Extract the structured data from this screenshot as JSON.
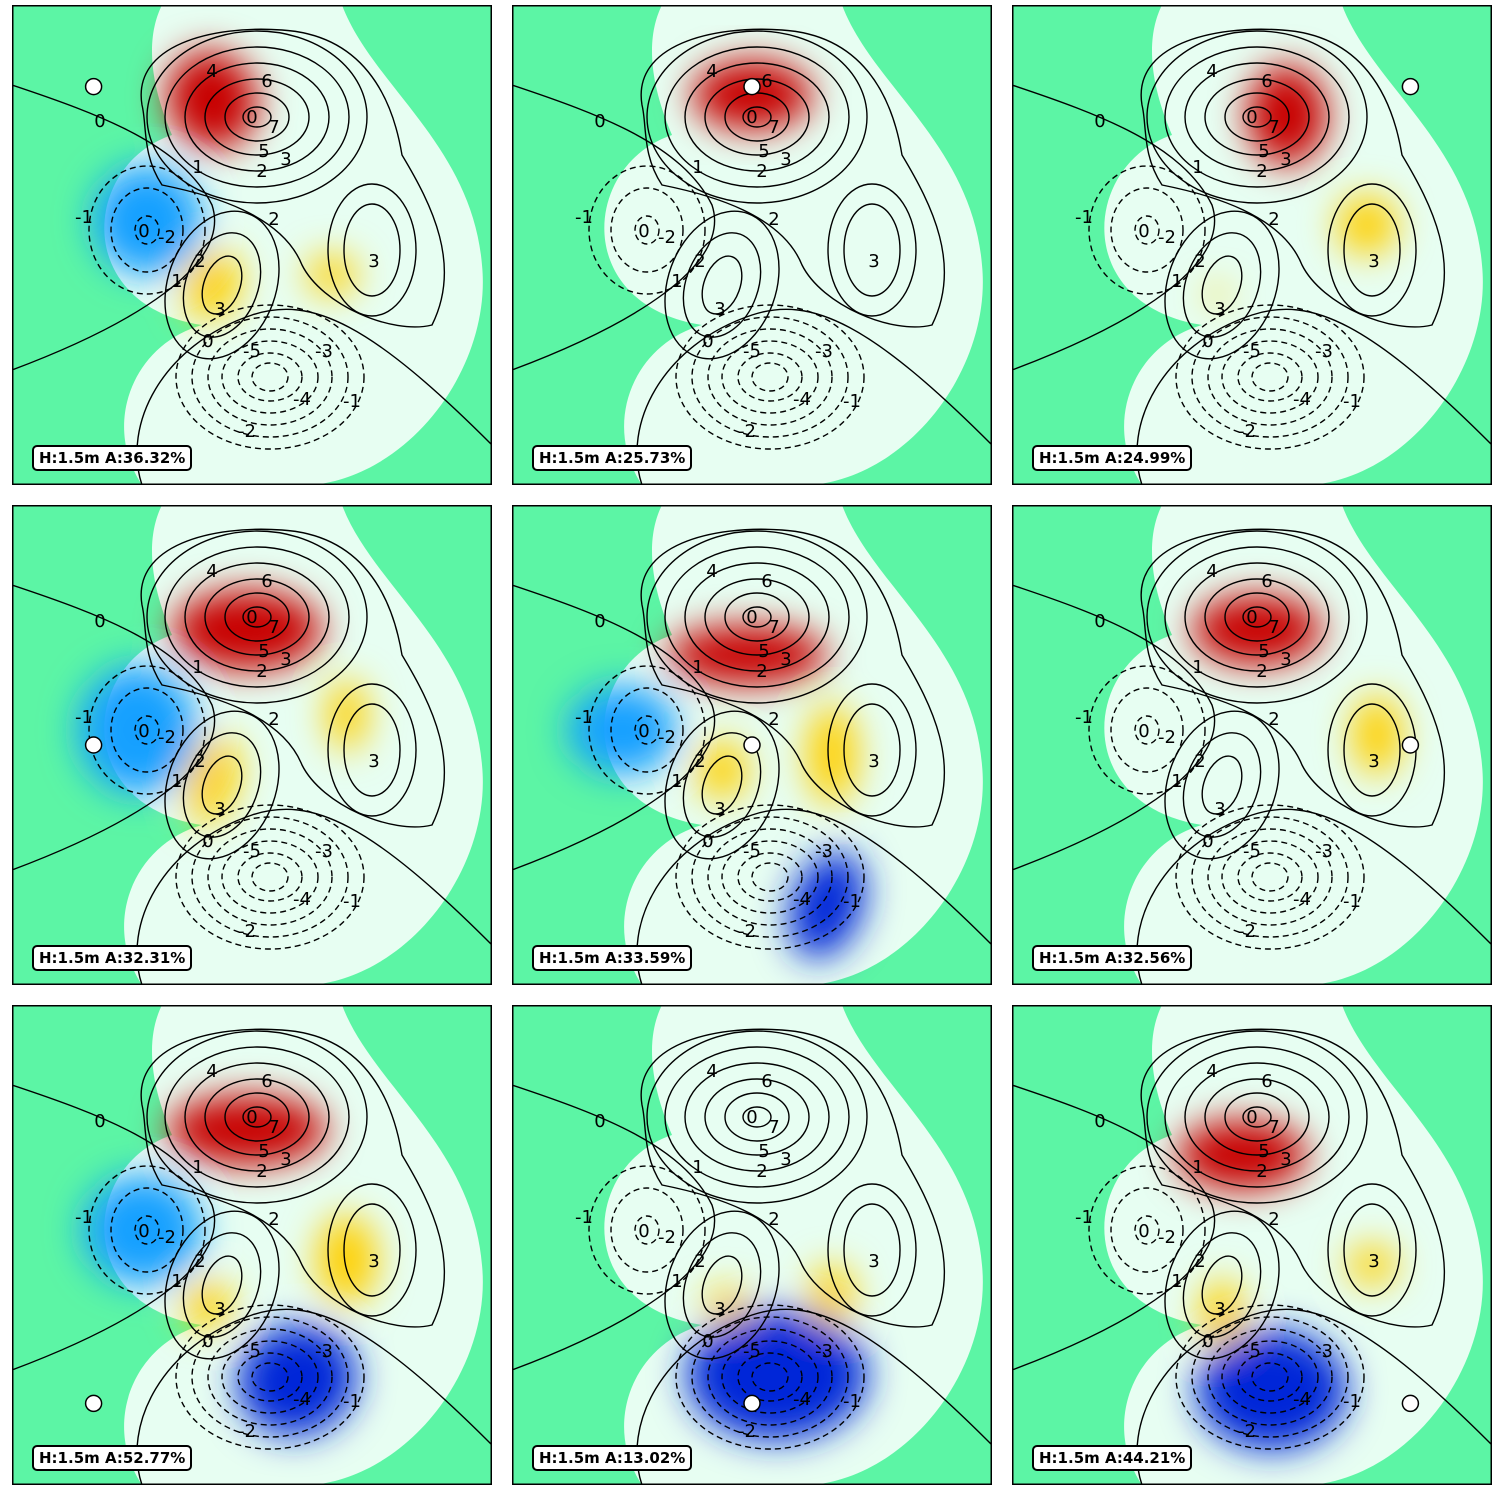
{
  "chart_data": {
    "type": "heatmap",
    "layout": "3x3 grid of contour maps with colored overlays",
    "contour_levels": {
      "peak_levels": [
        "4",
        "6",
        "7",
        "5",
        "3",
        "2",
        "1"
      ],
      "right_lobe_levels": [
        "2",
        "3"
      ],
      "left_trough_levels": [
        "-1",
        "-2"
      ],
      "bottom_trough_levels": [
        "-5",
        "-3",
        "-4",
        "-2",
        "-1"
      ],
      "small_lobe_levels": [
        "2",
        "3",
        "1"
      ],
      "zero_level": "0"
    },
    "panels": [
      {
        "label": "H:1.5m A:36.32%",
        "marker": {
          "x": 0.17,
          "y": 0.83
        }
      },
      {
        "label": "H:1.5m A:25.73%",
        "marker": {
          "x": 0.5,
          "y": 0.83
        }
      },
      {
        "label": "H:1.5m A:24.99%",
        "marker": {
          "x": 0.83,
          "y": 0.83
        }
      },
      {
        "label": "H:1.5m A:32.31%",
        "marker": {
          "x": 0.17,
          "y": 0.5
        }
      },
      {
        "label": "H:1.5m A:33.59%",
        "marker": {
          "x": 0.5,
          "y": 0.5
        }
      },
      {
        "label": "H:1.5m A:32.56%",
        "marker": {
          "x": 0.83,
          "y": 0.5
        }
      },
      {
        "label": "H:1.5m A:52.77%",
        "marker": {
          "x": 0.17,
          "y": 0.17
        }
      },
      {
        "label": "H:1.5m A:13.02%",
        "marker": {
          "x": 0.5,
          "y": 0.17
        }
      },
      {
        "label": "H:1.5m A:44.21%",
        "marker": {
          "x": 0.83,
          "y": 0.17
        }
      }
    ]
  },
  "colors": {
    "background_green": "#5cf5a5",
    "hot": "#c80000",
    "warm": "#ffd000",
    "cold": "#0028d8",
    "cool": "#18a0ff"
  }
}
